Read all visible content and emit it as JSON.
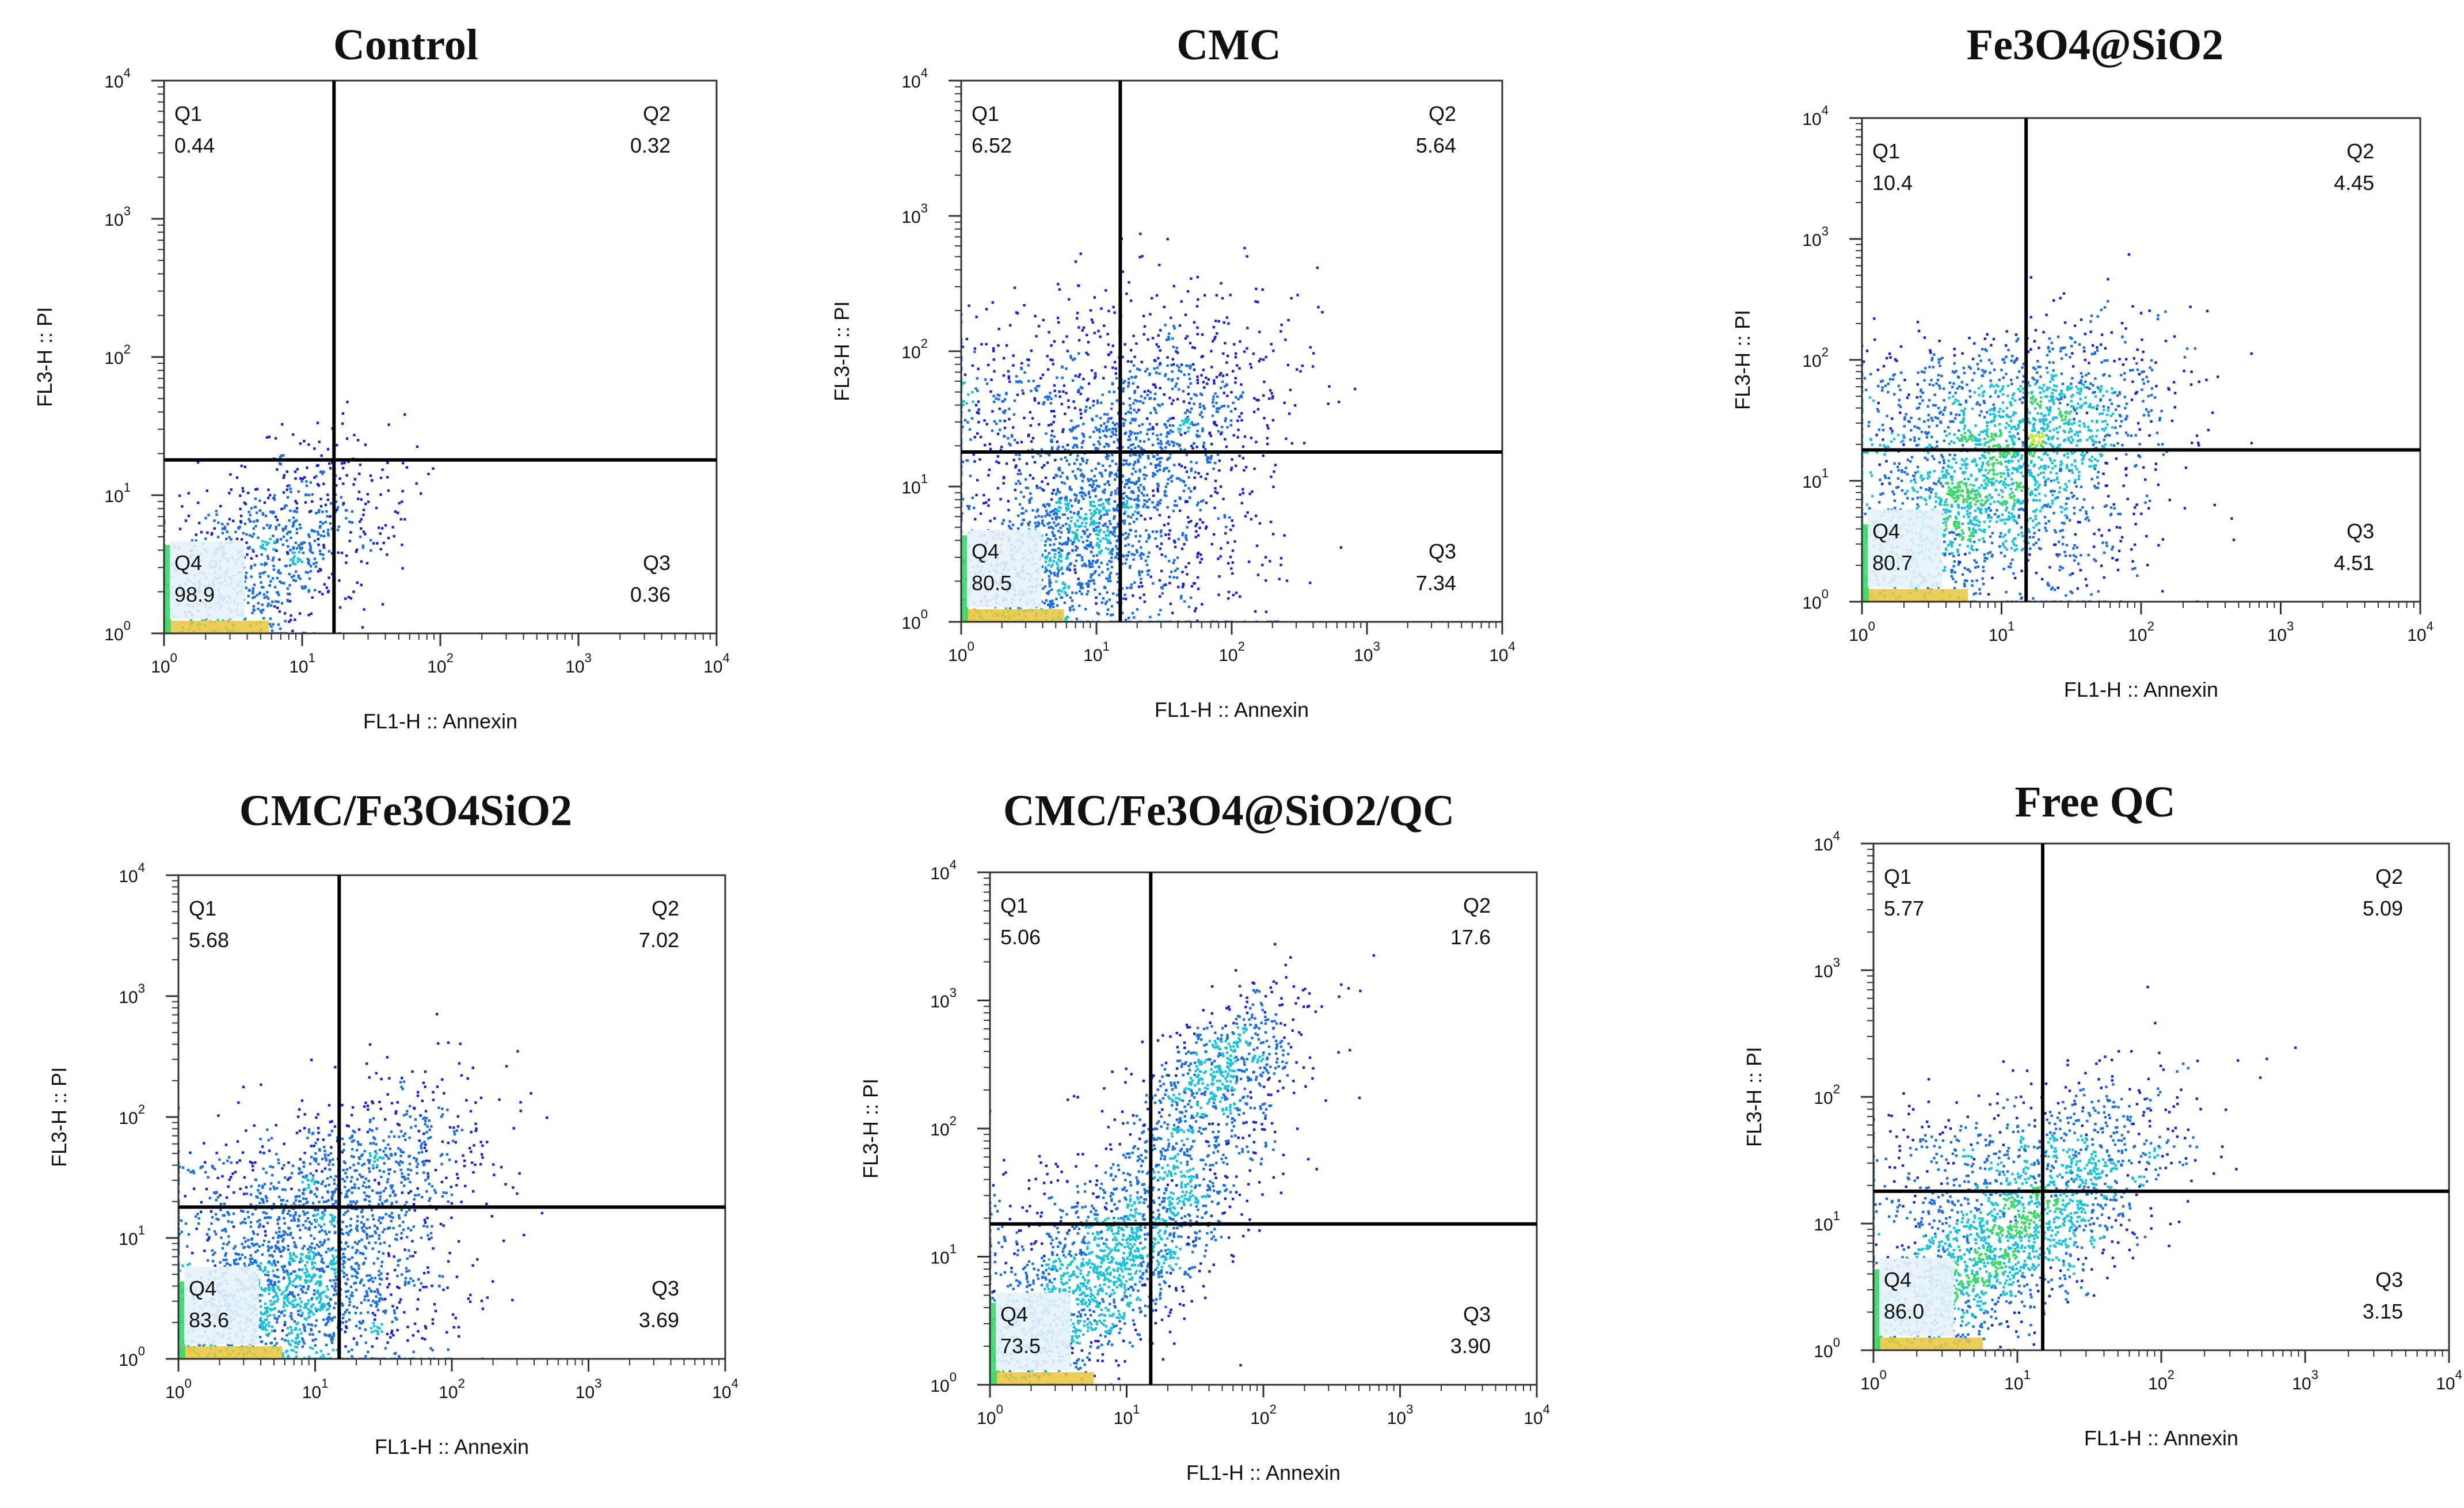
{
  "chart_data": [
    {
      "type": "scatter",
      "title": "Control",
      "xlabel": "FL1-H :: Annexin",
      "ylabel": "FL3-H :: PI",
      "xscale": "log",
      "yscale": "log",
      "xlim": [
        1,
        10000
      ],
      "ylim": [
        1,
        10000
      ],
      "gate": {
        "x": 17,
        "y": 18
      },
      "quadrants": [
        {
          "name": "Q1",
          "value": "0.44"
        },
        {
          "name": "Q2",
          "value": "0.32"
        },
        {
          "name": "Q3",
          "value": "0.36"
        },
        {
          "name": "Q4",
          "value": "98.9"
        }
      ],
      "populations": [
        {
          "cx": 3.5,
          "cy": 2.5,
          "sx": 0.55,
          "sy": 0.45,
          "rho": 0.6,
          "n": 900
        },
        {
          "cx": 9,
          "cy": 5,
          "sx": 0.35,
          "sy": 0.35,
          "rho": 0.5,
          "n": 200
        }
      ]
    },
    {
      "type": "scatter",
      "title": "CMC",
      "xlabel": "FL1-H :: Annexin",
      "ylabel": "FL3-H :: PI",
      "xscale": "log",
      "yscale": "log",
      "xlim": [
        1,
        10000
      ],
      "ylim": [
        1,
        10000
      ],
      "gate": {
        "x": 15,
        "y": 18
      },
      "quadrants": [
        {
          "name": "Q1",
          "value": "6.52"
        },
        {
          "name": "Q2",
          "value": "5.64"
        },
        {
          "name": "Q3",
          "value": "7.34"
        },
        {
          "name": "Q4",
          "value": "80.5"
        }
      ],
      "populations": [
        {
          "cx": 6,
          "cy": 4,
          "sx": 0.6,
          "sy": 0.6,
          "rho": 0.75,
          "n": 1600
        },
        {
          "cx": 4,
          "cy": 45,
          "sx": 0.6,
          "sy": 0.4,
          "rho": 0.3,
          "n": 500
        },
        {
          "cx": 40,
          "cy": 40,
          "sx": 0.5,
          "sy": 0.45,
          "rho": 0.3,
          "n": 350
        },
        {
          "cx": 25,
          "cy": 3,
          "sx": 0.5,
          "sy": 0.4,
          "rho": 0.0,
          "n": 400
        }
      ]
    },
    {
      "type": "scatter",
      "title": "Fe3O4@SiO2",
      "xlabel": "FL1-H :: Annexin",
      "ylabel": "FL3-H :: PI",
      "xscale": "log",
      "yscale": "log",
      "xlim": [
        1,
        10000
      ],
      "ylim": [
        1,
        10000
      ],
      "gate": {
        "x": 15,
        "y": 18
      },
      "quadrants": [
        {
          "name": "Q1",
          "value": "10.4"
        },
        {
          "name": "Q2",
          "value": "4.45"
        },
        {
          "name": "Q3",
          "value": "4.51"
        },
        {
          "name": "Q4",
          "value": "80.7"
        }
      ],
      "populations": [
        {
          "cx": 6,
          "cy": 7,
          "sx": 0.6,
          "sy": 0.55,
          "rho": 0.7,
          "n": 1600
        },
        {
          "cx": 5,
          "cy": 40,
          "sx": 0.55,
          "sy": 0.35,
          "rho": 0.3,
          "n": 550
        },
        {
          "cx": 30,
          "cy": 40,
          "sx": 0.4,
          "sy": 0.35,
          "rho": 0.2,
          "n": 250
        },
        {
          "cx": 25,
          "cy": 4,
          "sx": 0.45,
          "sy": 0.4,
          "rho": 0.0,
          "n": 300
        }
      ]
    },
    {
      "type": "scatter",
      "title": "CMC/Fe3O4SiO2",
      "xlabel": "FL1-H :: Annexin",
      "ylabel": "FL3-H :: PI",
      "xscale": "log",
      "yscale": "log",
      "xlim": [
        1,
        10000
      ],
      "ylim": [
        1,
        10000
      ],
      "gate": {
        "x": 15,
        "y": 18
      },
      "quadrants": [
        {
          "name": "Q1",
          "value": "5.68"
        },
        {
          "name": "Q2",
          "value": "7.02"
        },
        {
          "name": "Q3",
          "value": "3.69"
        },
        {
          "name": "Q4",
          "value": "83.6"
        }
      ],
      "populations": [
        {
          "cx": 5,
          "cy": 3,
          "sx": 0.55,
          "sy": 0.45,
          "rho": 0.55,
          "n": 1500
        },
        {
          "cx": 5,
          "cy": 20,
          "sx": 0.55,
          "sy": 0.35,
          "rho": 0.3,
          "n": 500
        },
        {
          "cx": 30,
          "cy": 40,
          "sx": 0.45,
          "sy": 0.4,
          "rho": 0.4,
          "n": 450
        },
        {
          "cx": 20,
          "cy": 2,
          "sx": 0.45,
          "sy": 0.3,
          "rho": 0.0,
          "n": 250
        }
      ]
    },
    {
      "type": "scatter",
      "title": "CMC/Fe3O4@SiO2/QC",
      "xlabel": "FL1-H :: Annexin",
      "ylabel": "FL3-H :: PI",
      "xscale": "log",
      "yscale": "log",
      "xlim": [
        1,
        10000
      ],
      "ylim": [
        1,
        10000
      ],
      "gate": {
        "x": 15,
        "y": 18
      },
      "quadrants": [
        {
          "name": "Q1",
          "value": "5.06"
        },
        {
          "name": "Q2",
          "value": "17.6"
        },
        {
          "name": "Q3",
          "value": "3.90"
        },
        {
          "name": "Q4",
          "value": "73.5"
        }
      ],
      "populations": [
        {
          "cx": 6,
          "cy": 6,
          "sx": 0.55,
          "sy": 0.55,
          "rho": 0.8,
          "n": 1500
        },
        {
          "cx": 45,
          "cy": 300,
          "sx": 0.3,
          "sy": 0.3,
          "rho": 0.6,
          "n": 500
        },
        {
          "cx": 25,
          "cy": 60,
          "sx": 0.45,
          "sy": 0.55,
          "rho": 0.8,
          "n": 450
        },
        {
          "cx": 3,
          "cy": 15,
          "sx": 0.45,
          "sy": 0.4,
          "rho": 0.3,
          "n": 250
        }
      ]
    },
    {
      "type": "scatter",
      "title": "Free QC",
      "xlabel": "FL1-H :: Annexin",
      "ylabel": "FL3-H :: PI",
      "xscale": "log",
      "yscale": "log",
      "xlim": [
        1,
        10000
      ],
      "ylim": [
        1,
        10000
      ],
      "gate": {
        "x": 15,
        "y": 18
      },
      "quadrants": [
        {
          "name": "Q1",
          "value": "5.77"
        },
        {
          "name": "Q2",
          "value": "5.09"
        },
        {
          "name": "Q3",
          "value": "3.15"
        },
        {
          "name": "Q4",
          "value": "86.0"
        }
      ],
      "populations": [
        {
          "cx": 7,
          "cy": 6,
          "sx": 0.55,
          "sy": 0.5,
          "rho": 0.75,
          "n": 1700
        },
        {
          "cx": 4,
          "cy": 25,
          "sx": 0.5,
          "sy": 0.35,
          "rho": 0.3,
          "n": 350
        },
        {
          "cx": 30,
          "cy": 35,
          "sx": 0.4,
          "sy": 0.35,
          "rho": 0.3,
          "n": 250
        }
      ]
    }
  ]
}
